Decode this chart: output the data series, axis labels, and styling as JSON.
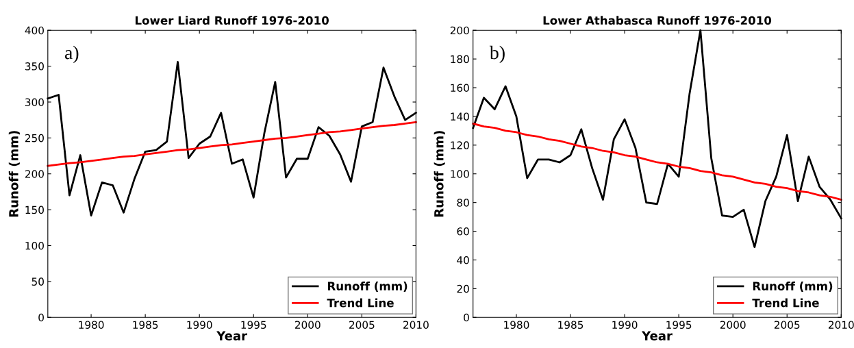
{
  "chart_data": [
    {
      "type": "line",
      "title": "Lower Liard Runoff 1976-2010",
      "xlabel": "Year",
      "ylabel": "Runoff (mm)",
      "annotations": [
        "a)"
      ],
      "x": [
        1976,
        1977,
        1978,
        1979,
        1980,
        1981,
        1982,
        1983,
        1984,
        1985,
        1986,
        1987,
        1988,
        1989,
        1990,
        1991,
        1992,
        1993,
        1994,
        1995,
        1996,
        1997,
        1998,
        1999,
        2000,
        2001,
        2002,
        2003,
        2004,
        2005,
        2006,
        2007,
        2008,
        2009,
        2010
      ],
      "series": [
        {
          "name": "Runoff (mm)",
          "color": "#000000",
          "values": [
            305,
            310,
            170,
            226,
            142,
            188,
            184,
            146,
            193,
            231,
            233,
            245,
            356,
            222,
            242,
            252,
            285,
            214,
            220,
            167,
            257,
            328,
            195,
            221,
            221,
            265,
            253,
            227,
            189,
            266,
            272,
            348,
            308,
            275,
            285
          ]
        },
        {
          "name": "Trend Line",
          "color": "#ff0000",
          "values": [
            211,
            213,
            215,
            216,
            218,
            220,
            222,
            224,
            225,
            227,
            229,
            231,
            233,
            234,
            236,
            238,
            240,
            241,
            243,
            245,
            247,
            249,
            250,
            252,
            254,
            256,
            258,
            259,
            261,
            263,
            265,
            267,
            268,
            270,
            272
          ]
        }
      ],
      "xlim": [
        1976,
        2010
      ],
      "xticks": [
        1980,
        1985,
        1990,
        1995,
        2000,
        2005,
        2010
      ],
      "ylim": [
        0,
        400
      ],
      "yticks": [
        0,
        50,
        100,
        150,
        200,
        250,
        300,
        350,
        400
      ],
      "grid": false,
      "legend": "bottom right",
      "marker": "none",
      "line_style": "solid"
    },
    {
      "type": "line",
      "title": "Lower Athabasca Runoff 1976-2010",
      "xlabel": "Year",
      "ylabel": "Runoff (mm)",
      "annotations": [
        "b)"
      ],
      "x": [
        1976,
        1977,
        1978,
        1979,
        1980,
        1981,
        1982,
        1983,
        1984,
        1985,
        1986,
        1987,
        1988,
        1989,
        1990,
        1991,
        1992,
        1993,
        1994,
        1995,
        1996,
        1997,
        1998,
        1999,
        2000,
        2001,
        2002,
        2003,
        2004,
        2005,
        2006,
        2007,
        2008,
        2009,
        2010
      ],
      "series": [
        {
          "name": "Runoff (mm)",
          "color": "#000000",
          "values": [
            132,
            153,
            145,
            161,
            140,
            97,
            110,
            110,
            108,
            113,
            131,
            104,
            82,
            124,
            138,
            118,
            80,
            79,
            107,
            98,
            156,
            200,
            111,
            71,
            70,
            75,
            49,
            81,
            98,
            127,
            81,
            112,
            91,
            82,
            69
          ]
        },
        {
          "name": "Trend Line",
          "color": "#ff0000",
          "values": [
            135,
            133,
            132,
            130,
            129,
            127,
            126,
            124,
            123,
            121,
            119,
            118,
            116,
            115,
            113,
            112,
            110,
            108,
            107,
            105,
            104,
            102,
            101,
            99,
            98,
            96,
            94,
            93,
            91,
            90,
            88,
            87,
            85,
            84,
            82
          ]
        }
      ],
      "xlim": [
        1976,
        2010
      ],
      "xticks": [
        1980,
        1985,
        1990,
        1995,
        2000,
        2005,
        2010
      ],
      "ylim": [
        0,
        200
      ],
      "yticks": [
        0,
        20,
        40,
        60,
        80,
        100,
        120,
        140,
        160,
        180,
        200
      ],
      "grid": false,
      "legend": "bottom right",
      "marker": "none",
      "line_style": "solid"
    }
  ]
}
